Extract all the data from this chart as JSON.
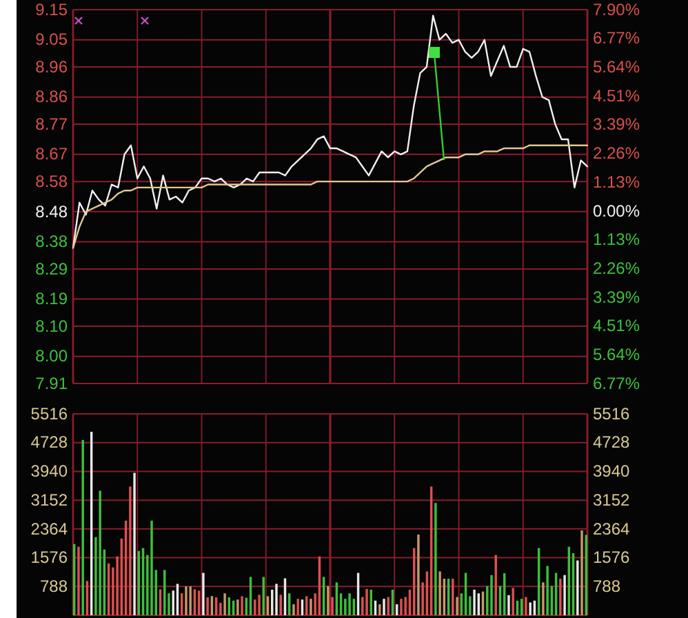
{
  "chart_data": [
    {
      "type": "line",
      "categories": [
        null,
        null,
        null,
        null,
        null,
        null,
        null,
        null,
        null,
        null,
        null,
        null,
        null,
        null,
        null,
        null,
        null,
        null,
        null,
        null,
        null,
        null,
        null,
        null,
        null,
        null,
        null,
        null,
        null,
        null,
        null,
        null,
        null,
        null,
        null,
        null,
        null,
        null,
        null,
        null,
        null,
        null,
        null,
        null,
        null,
        null,
        null,
        null,
        null,
        null,
        null,
        null,
        null,
        null,
        null,
        null,
        null,
        null,
        null,
        null,
        null,
        null,
        null,
        null,
        null,
        null,
        null,
        null,
        null,
        null,
        null,
        null,
        null,
        null,
        null,
        null,
        null,
        null,
        null,
        null,
        null
      ],
      "ylim": [
        7.91,
        9.15
      ],
      "yticks": [
        7.91,
        {
          "value": 8.0,
          "label": "8.00"
        },
        {
          "value": 8.1,
          "label": "8.10"
        },
        8.19,
        8.29,
        8.38,
        8.48,
        8.58,
        8.67,
        8.77,
        8.86,
        8.96,
        9.05,
        9.15
      ],
      "y2lim": [
        -6.77,
        7.9
      ],
      "y2ticks": [
        {
          "value": -6.77,
          "label": "6.77%"
        },
        {
          "value": -5.64,
          "label": "5.64%"
        },
        {
          "value": -4.51,
          "label": "4.51%"
        },
        {
          "value": -3.39,
          "label": "3.39%"
        },
        {
          "value": -2.26,
          "label": "2.26%"
        },
        {
          "value": -1.13,
          "label": "1.13%"
        },
        {
          "value": 0,
          "label": "0.00%"
        },
        {
          "value": 1.13,
          "label": "1.13%"
        },
        {
          "value": 2.26,
          "label": "2.26%"
        },
        {
          "value": 3.39,
          "label": "3.39%"
        },
        {
          "value": 4.51,
          "label": "4.51%"
        },
        {
          "value": 5.64,
          "label": "5.64%"
        },
        {
          "value": 6.77,
          "label": "6.77%"
        },
        {
          "value": 7.9,
          "label": "7.90%"
        }
      ],
      "grid": true,
      "series": [
        {
          "color": "#f0f0f0",
          "values": [
            8.36,
            8.51,
            8.47,
            8.55,
            8.52,
            8.5,
            8.57,
            8.56,
            8.67,
            8.7,
            8.59,
            8.63,
            8.59,
            8.49,
            8.6,
            8.52,
            8.53,
            8.51,
            8.55,
            8.56,
            8.59,
            8.59,
            8.58,
            8.59,
            8.57,
            8.56,
            8.57,
            8.59,
            8.58,
            8.61,
            8.61,
            8.61,
            8.61,
            8.6,
            8.63,
            8.65,
            8.67,
            8.69,
            8.72,
            8.73,
            8.69,
            8.69,
            8.68,
            8.67,
            8.66,
            8.63,
            8.6,
            8.64,
            8.68,
            8.66,
            8.68,
            8.67,
            8.68,
            8.83,
            8.94,
            8.96,
            9.13,
            9.05,
            9.07,
            9.04,
            9.05,
            9.01,
            8.99,
            9.01,
            9.05,
            8.93,
            8.98,
            9.03,
            8.96,
            8.96,
            9.02,
            9.01,
            8.93,
            8.86,
            8.85,
            8.77,
            8.72,
            8.72,
            8.56,
            8.65,
            8.63
          ]
        },
        {
          "color": "#e0c890",
          "values": [
            8.36,
            8.43,
            8.48,
            8.49,
            8.5,
            8.51,
            8.52,
            8.54,
            8.55,
            8.55,
            8.56,
            8.56,
            8.56,
            8.56,
            8.56,
            8.56,
            8.56,
            8.56,
            8.56,
            8.56,
            8.56,
            8.57,
            8.57,
            8.57,
            8.57,
            8.57,
            8.57,
            8.57,
            8.57,
            8.57,
            8.57,
            8.57,
            8.57,
            8.57,
            8.57,
            8.57,
            8.57,
            8.57,
            8.58,
            8.58,
            8.58,
            8.58,
            8.58,
            8.58,
            8.58,
            8.58,
            8.58,
            8.58,
            8.58,
            8.58,
            8.58,
            8.58,
            8.58,
            8.59,
            8.61,
            8.63,
            8.64,
            8.65,
            8.66,
            8.66,
            8.66,
            8.67,
            8.67,
            8.67,
            8.68,
            8.68,
            8.68,
            8.69,
            8.69,
            8.69,
            8.69,
            8.7,
            8.7,
            8.7,
            8.7,
            8.7,
            8.7,
            8.7,
            8.7,
            8.7,
            8.7
          ]
        }
      ]
    },
    {
      "type": "bar",
      "categories": [
        null,
        null,
        null,
        null,
        null,
        null,
        null,
        null,
        null,
        null,
        null,
        null,
        null,
        null,
        null,
        null,
        null,
        null,
        null,
        null,
        null,
        null,
        null,
        null,
        null,
        null,
        null,
        null,
        null,
        null,
        null,
        null,
        null,
        null,
        null,
        null,
        null,
        null,
        null,
        null,
        null,
        null,
        null,
        null,
        null,
        null,
        null,
        null,
        null,
        null,
        null,
        null,
        null,
        null,
        null,
        null,
        null,
        null,
        null,
        null,
        null,
        null,
        null,
        null,
        null,
        null,
        null,
        null,
        null,
        null,
        null,
        null,
        null,
        null,
        null,
        null,
        null,
        null,
        null,
        null,
        null,
        null,
        null,
        null,
        null,
        null,
        null,
        null,
        null,
        null,
        null,
        null,
        null,
        null,
        null,
        null,
        null,
        null,
        null,
        null,
        null,
        null,
        null,
        null,
        null,
        null,
        null,
        null,
        null,
        null,
        null,
        null,
        null,
        null,
        null,
        null,
        null,
        null,
        null,
        null
      ],
      "ylim": [
        0,
        5516
      ],
      "yticks": [
        788,
        1576,
        2364,
        3152,
        3940,
        4728,
        5516
      ],
      "y2lim": [
        0,
        5516
      ],
      "y2ticks": [
        788,
        1576,
        2364,
        3152,
        3940,
        4728,
        5516
      ],
      "grid": true,
      "values": [
        1950,
        1875,
        4800,
        940,
        5025,
        2140,
        3410,
        1800,
        1420,
        1310,
        1610,
        2100,
        2590,
        3525,
        3900,
        1760,
        1840,
        1650,
        2590,
        1240,
        710,
        1240,
        600,
        675,
        860,
        600,
        790,
        790,
        710,
        675,
        1160,
        490,
        525,
        490,
        340,
        600,
        490,
        400,
        430,
        520,
        480,
        1050,
        430,
        560,
        1050,
        520,
        700,
        860,
        560,
        1010,
        600,
        300,
        450,
        430,
        520,
        450,
        600,
        1610,
        1050,
        800,
        500,
        900,
        600,
        450,
        600,
        450,
        1160,
        500,
        720,
        700,
        400,
        300,
        450,
        500,
        700,
        300,
        450,
        500,
        700,
        1840,
        2210,
        900,
        1200,
        3525,
        3075,
        1200,
        1000,
        1000,
        1000,
        500,
        600,
        1160,
        520,
        700,
        600,
        650,
        800,
        1100,
        1650,
        800,
        1150,
        550,
        750,
        400,
        450,
        500,
        350,
        400,
        1840,
        900,
        1350,
        800,
        1160,
        1000,
        1100,
        1875,
        1700,
        1500,
        2325,
        2200
      ],
      "colors": [
        "#3cc03c",
        "#e05050",
        "#3cc03c",
        "#e05050",
        "#e8e8e8",
        "#3cc03c",
        "#3cc03c",
        "#3cc03c",
        "#e05050",
        "#e05050",
        "#e05050",
        "#e05050",
        "#e05050",
        "#e05050",
        "#e8e8e8",
        "#3cc03c",
        "#3cc03c",
        "#3cc03c",
        "#3cc03c",
        "#3cc03c",
        "#e05050",
        "#3cc03c",
        "#3cc03c",
        "#e8e8e8",
        "#e8e8e8",
        "#e05050",
        "#c89868",
        "#c89868",
        "#e05050",
        "#e05050",
        "#e8e8e8",
        "#e05050",
        "#c89868",
        "#e05050",
        "#e05050",
        "#c89868",
        "#3cc03c",
        "#3cc03c",
        "#c89868",
        "#e05050",
        "#3cc03c",
        "#3cc03c",
        "#e05050",
        "#e05050",
        "#3cc03c",
        "#c89868",
        "#e8e8e8",
        "#e8e8e8",
        "#e05050",
        "#e8e8e8",
        "#3cc03c",
        "#c89868",
        "#e05050",
        "#e8e8e8",
        "#e05050",
        "#c89868",
        "#e05050",
        "#e05050",
        "#3cc03c",
        "#c89868",
        "#e05050",
        "#3cc03c",
        "#3cc03c",
        "#3cc03c",
        "#3cc03c",
        "#3cc03c",
        "#e8e8e8",
        "#e05050",
        "#e05050",
        "#3cc03c",
        "#e8e8e8",
        "#c89868",
        "#e8e8e8",
        "#e05050",
        "#3cc03c",
        "#e8e8e8",
        "#e05050",
        "#e05050",
        "#e05050",
        "#e05050",
        "#c89868",
        "#e05050",
        "#e05050",
        "#e05050",
        "#3cc03c",
        "#c89868",
        "#c89868",
        "#3cc03c",
        "#e05050",
        "#c89868",
        "#3cc03c",
        "#3cc03c",
        "#3cc03c",
        "#e8e8e8",
        "#e8e8e8",
        "#c89868",
        "#3cc03c",
        "#3cc03c",
        "#e05050",
        "#3cc03c",
        "#3cc03c",
        "#e8e8e8",
        "#e05050",
        "#3cc03c",
        "#3cc03c",
        "#e05050",
        "#e8e8e8",
        "#e8e8e8",
        "#3cc03c",
        "#c89868",
        "#3cc03c",
        "#3cc03c",
        "#3cc03c",
        "#e05050",
        "#e8e8e8",
        "#3cc03c",
        "#3cc03c",
        "#e8e8e8",
        "#c89868",
        "#3cc03c"
      ]
    }
  ]
}
